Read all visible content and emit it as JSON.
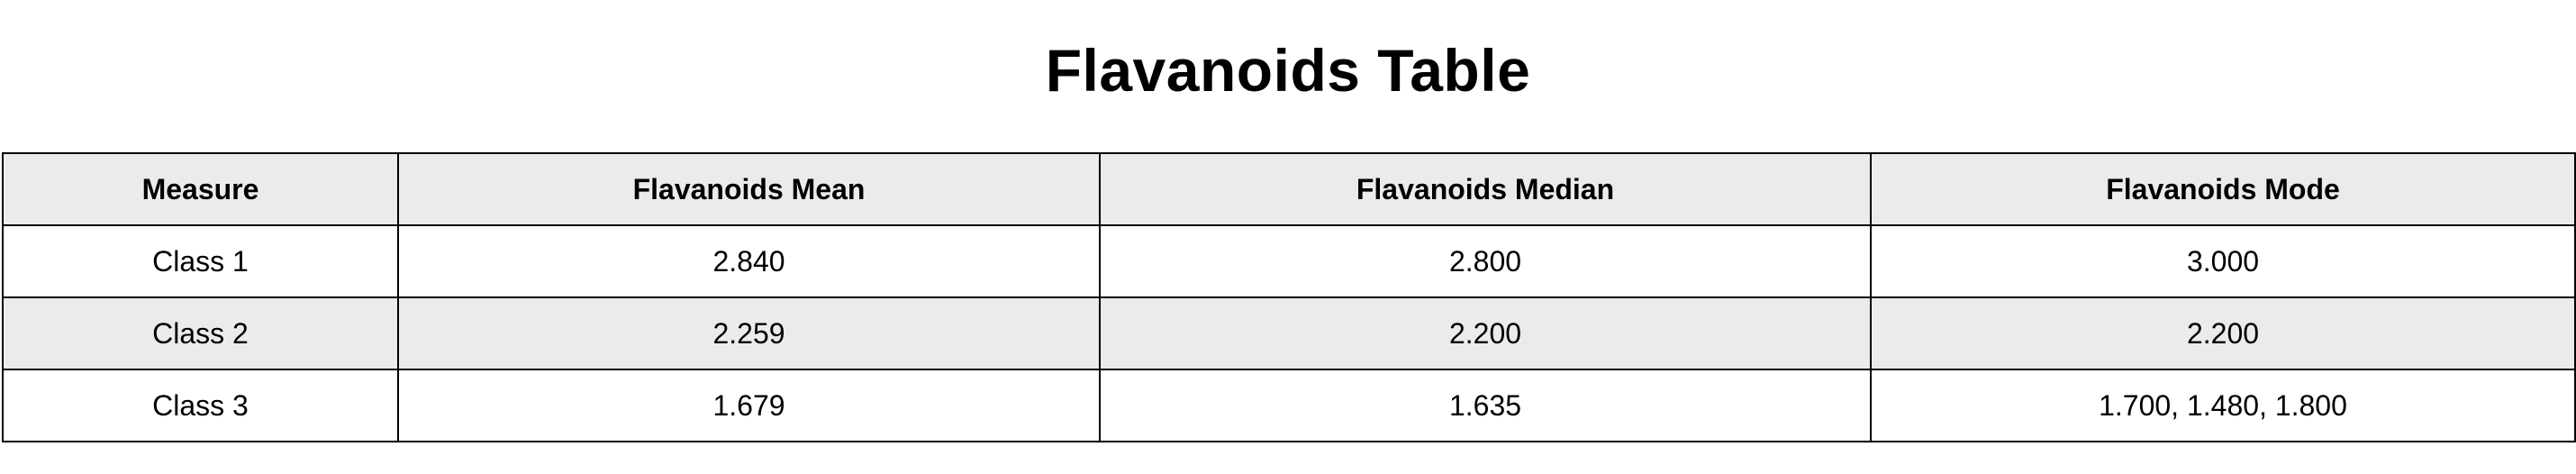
{
  "title": "Flavanoids Table",
  "table": {
    "headers": [
      "Measure",
      "Flavanoids Mean",
      "Flavanoids Median",
      "Flavanoids Mode"
    ],
    "rows": [
      [
        "Class 1",
        "2.840",
        "2.800",
        "3.000"
      ],
      [
        "Class 2",
        "2.259",
        "2.200",
        "2.200"
      ],
      [
        "Class 3",
        "1.679",
        "1.635",
        "1.700, 1.480, 1.800"
      ]
    ]
  },
  "colors": {
    "shaded_row": "#ebebeb",
    "background": "#ffffff",
    "border": "#000000"
  }
}
